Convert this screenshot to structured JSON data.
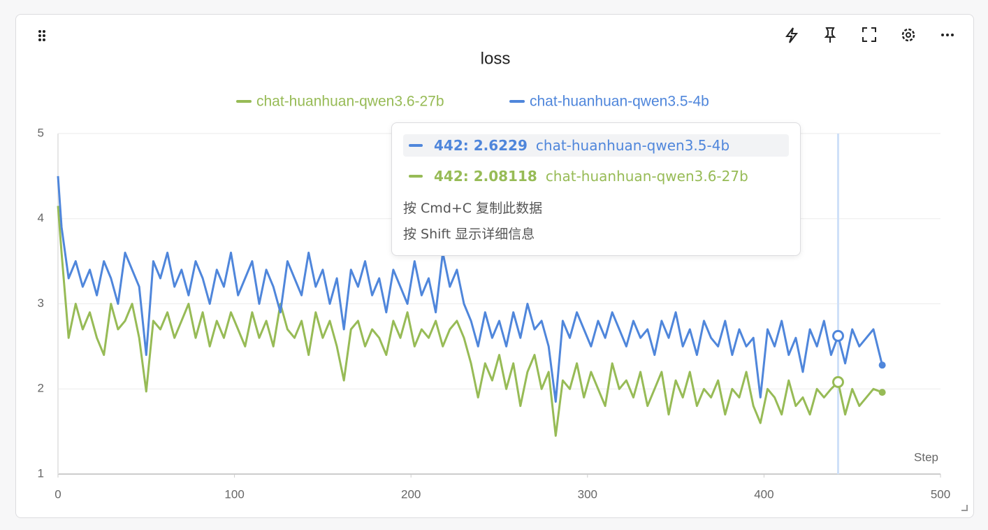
{
  "chart_data": {
    "type": "line",
    "title": "loss",
    "x_label": "Step",
    "xlim": [
      0,
      500
    ],
    "xticks": [
      0,
      100,
      200,
      300,
      400,
      500
    ],
    "ylim": [
      1,
      5
    ],
    "yticks": [
      1,
      2,
      3,
      4,
      5
    ],
    "grid": true,
    "hover_x": 442,
    "x": [
      0,
      2,
      6,
      10,
      14,
      18,
      22,
      26,
      30,
      34,
      38,
      42,
      46,
      50,
      54,
      58,
      62,
      66,
      70,
      74,
      78,
      82,
      86,
      90,
      94,
      98,
      102,
      106,
      110,
      114,
      118,
      122,
      126,
      130,
      134,
      138,
      142,
      146,
      150,
      154,
      158,
      162,
      166,
      170,
      174,
      178,
      182,
      186,
      190,
      194,
      198,
      202,
      206,
      210,
      214,
      218,
      222,
      226,
      230,
      234,
      238,
      242,
      246,
      250,
      254,
      258,
      262,
      266,
      270,
      274,
      278,
      282,
      286,
      290,
      294,
      298,
      302,
      306,
      310,
      314,
      318,
      322,
      326,
      330,
      334,
      338,
      342,
      346,
      350,
      354,
      358,
      362,
      366,
      370,
      374,
      378,
      382,
      386,
      390,
      394,
      398,
      402,
      406,
      410,
      414,
      418,
      422,
      426,
      430,
      434,
      438,
      442,
      446,
      450,
      454,
      458,
      462,
      467
    ],
    "series": [
      {
        "name": "chat-huanhuan-qwen3.6-27b",
        "color": "#97bb56",
        "values": [
          4.15,
          3.6,
          2.6,
          3.0,
          2.7,
          2.9,
          2.6,
          2.4,
          3.0,
          2.7,
          2.8,
          3.0,
          2.6,
          1.97,
          2.8,
          2.7,
          2.9,
          2.6,
          2.8,
          3.0,
          2.6,
          2.9,
          2.5,
          2.8,
          2.6,
          2.9,
          2.7,
          2.5,
          2.9,
          2.6,
          2.8,
          2.5,
          3.0,
          2.7,
          2.6,
          2.8,
          2.4,
          2.9,
          2.6,
          2.8,
          2.5,
          2.1,
          2.7,
          2.8,
          2.5,
          2.7,
          2.6,
          2.4,
          2.8,
          2.6,
          2.9,
          2.5,
          2.7,
          2.6,
          2.8,
          2.5,
          2.7,
          2.8,
          2.6,
          2.3,
          1.9,
          2.3,
          2.1,
          2.4,
          2.0,
          2.3,
          1.8,
          2.2,
          2.4,
          2.0,
          2.2,
          1.45,
          2.1,
          2.0,
          2.3,
          1.9,
          2.2,
          2.0,
          1.8,
          2.3,
          2.0,
          2.1,
          1.9,
          2.2,
          1.8,
          2.0,
          2.2,
          1.7,
          2.1,
          1.9,
          2.2,
          1.8,
          2.0,
          1.9,
          2.1,
          1.7,
          2.0,
          1.9,
          2.2,
          1.8,
          1.6,
          2.0,
          1.9,
          1.7,
          2.1,
          1.8,
          1.9,
          1.7,
          2.0,
          1.9,
          2.0,
          2.08118,
          1.7,
          2.0,
          1.8,
          1.9,
          2.0,
          1.96
        ]
      },
      {
        "name": "chat-huanhuan-qwen3.5-4b",
        "color": "#4f86db",
        "values": [
          4.5,
          3.9,
          3.3,
          3.5,
          3.2,
          3.4,
          3.1,
          3.5,
          3.3,
          3.0,
          3.6,
          3.4,
          3.2,
          2.4,
          3.5,
          3.3,
          3.6,
          3.2,
          3.4,
          3.1,
          3.5,
          3.3,
          3.0,
          3.4,
          3.2,
          3.6,
          3.1,
          3.3,
          3.5,
          3.0,
          3.4,
          3.2,
          2.9,
          3.5,
          3.3,
          3.1,
          3.6,
          3.2,
          3.4,
          3.0,
          3.3,
          2.7,
          3.4,
          3.2,
          3.5,
          3.1,
          3.3,
          2.9,
          3.4,
          3.2,
          3.0,
          3.5,
          3.1,
          3.3,
          2.9,
          3.6,
          3.2,
          3.4,
          3.0,
          2.8,
          2.5,
          2.9,
          2.6,
          2.8,
          2.5,
          2.9,
          2.6,
          3.0,
          2.7,
          2.8,
          2.5,
          1.85,
          2.8,
          2.6,
          2.9,
          2.7,
          2.5,
          2.8,
          2.6,
          2.9,
          2.7,
          2.5,
          2.8,
          2.6,
          2.7,
          2.4,
          2.8,
          2.6,
          2.9,
          2.5,
          2.7,
          2.4,
          2.8,
          2.6,
          2.5,
          2.8,
          2.4,
          2.7,
          2.5,
          2.6,
          1.9,
          2.7,
          2.5,
          2.8,
          2.4,
          2.6,
          2.2,
          2.7,
          2.5,
          2.8,
          2.4,
          2.6229,
          2.3,
          2.7,
          2.5,
          2.6,
          2.7,
          2.28
        ]
      }
    ],
    "tooltip": {
      "rows": [
        {
          "label": "442: 2.6229",
          "name": "chat-huanhuan-qwen3.5-4b"
        },
        {
          "label": "442: 2.08118",
          "name": "chat-huanhuan-qwen3.6-27b"
        }
      ],
      "hints": [
        "按 Cmd+C 复制此数据",
        "按 Shift 显示详细信息"
      ]
    }
  }
}
